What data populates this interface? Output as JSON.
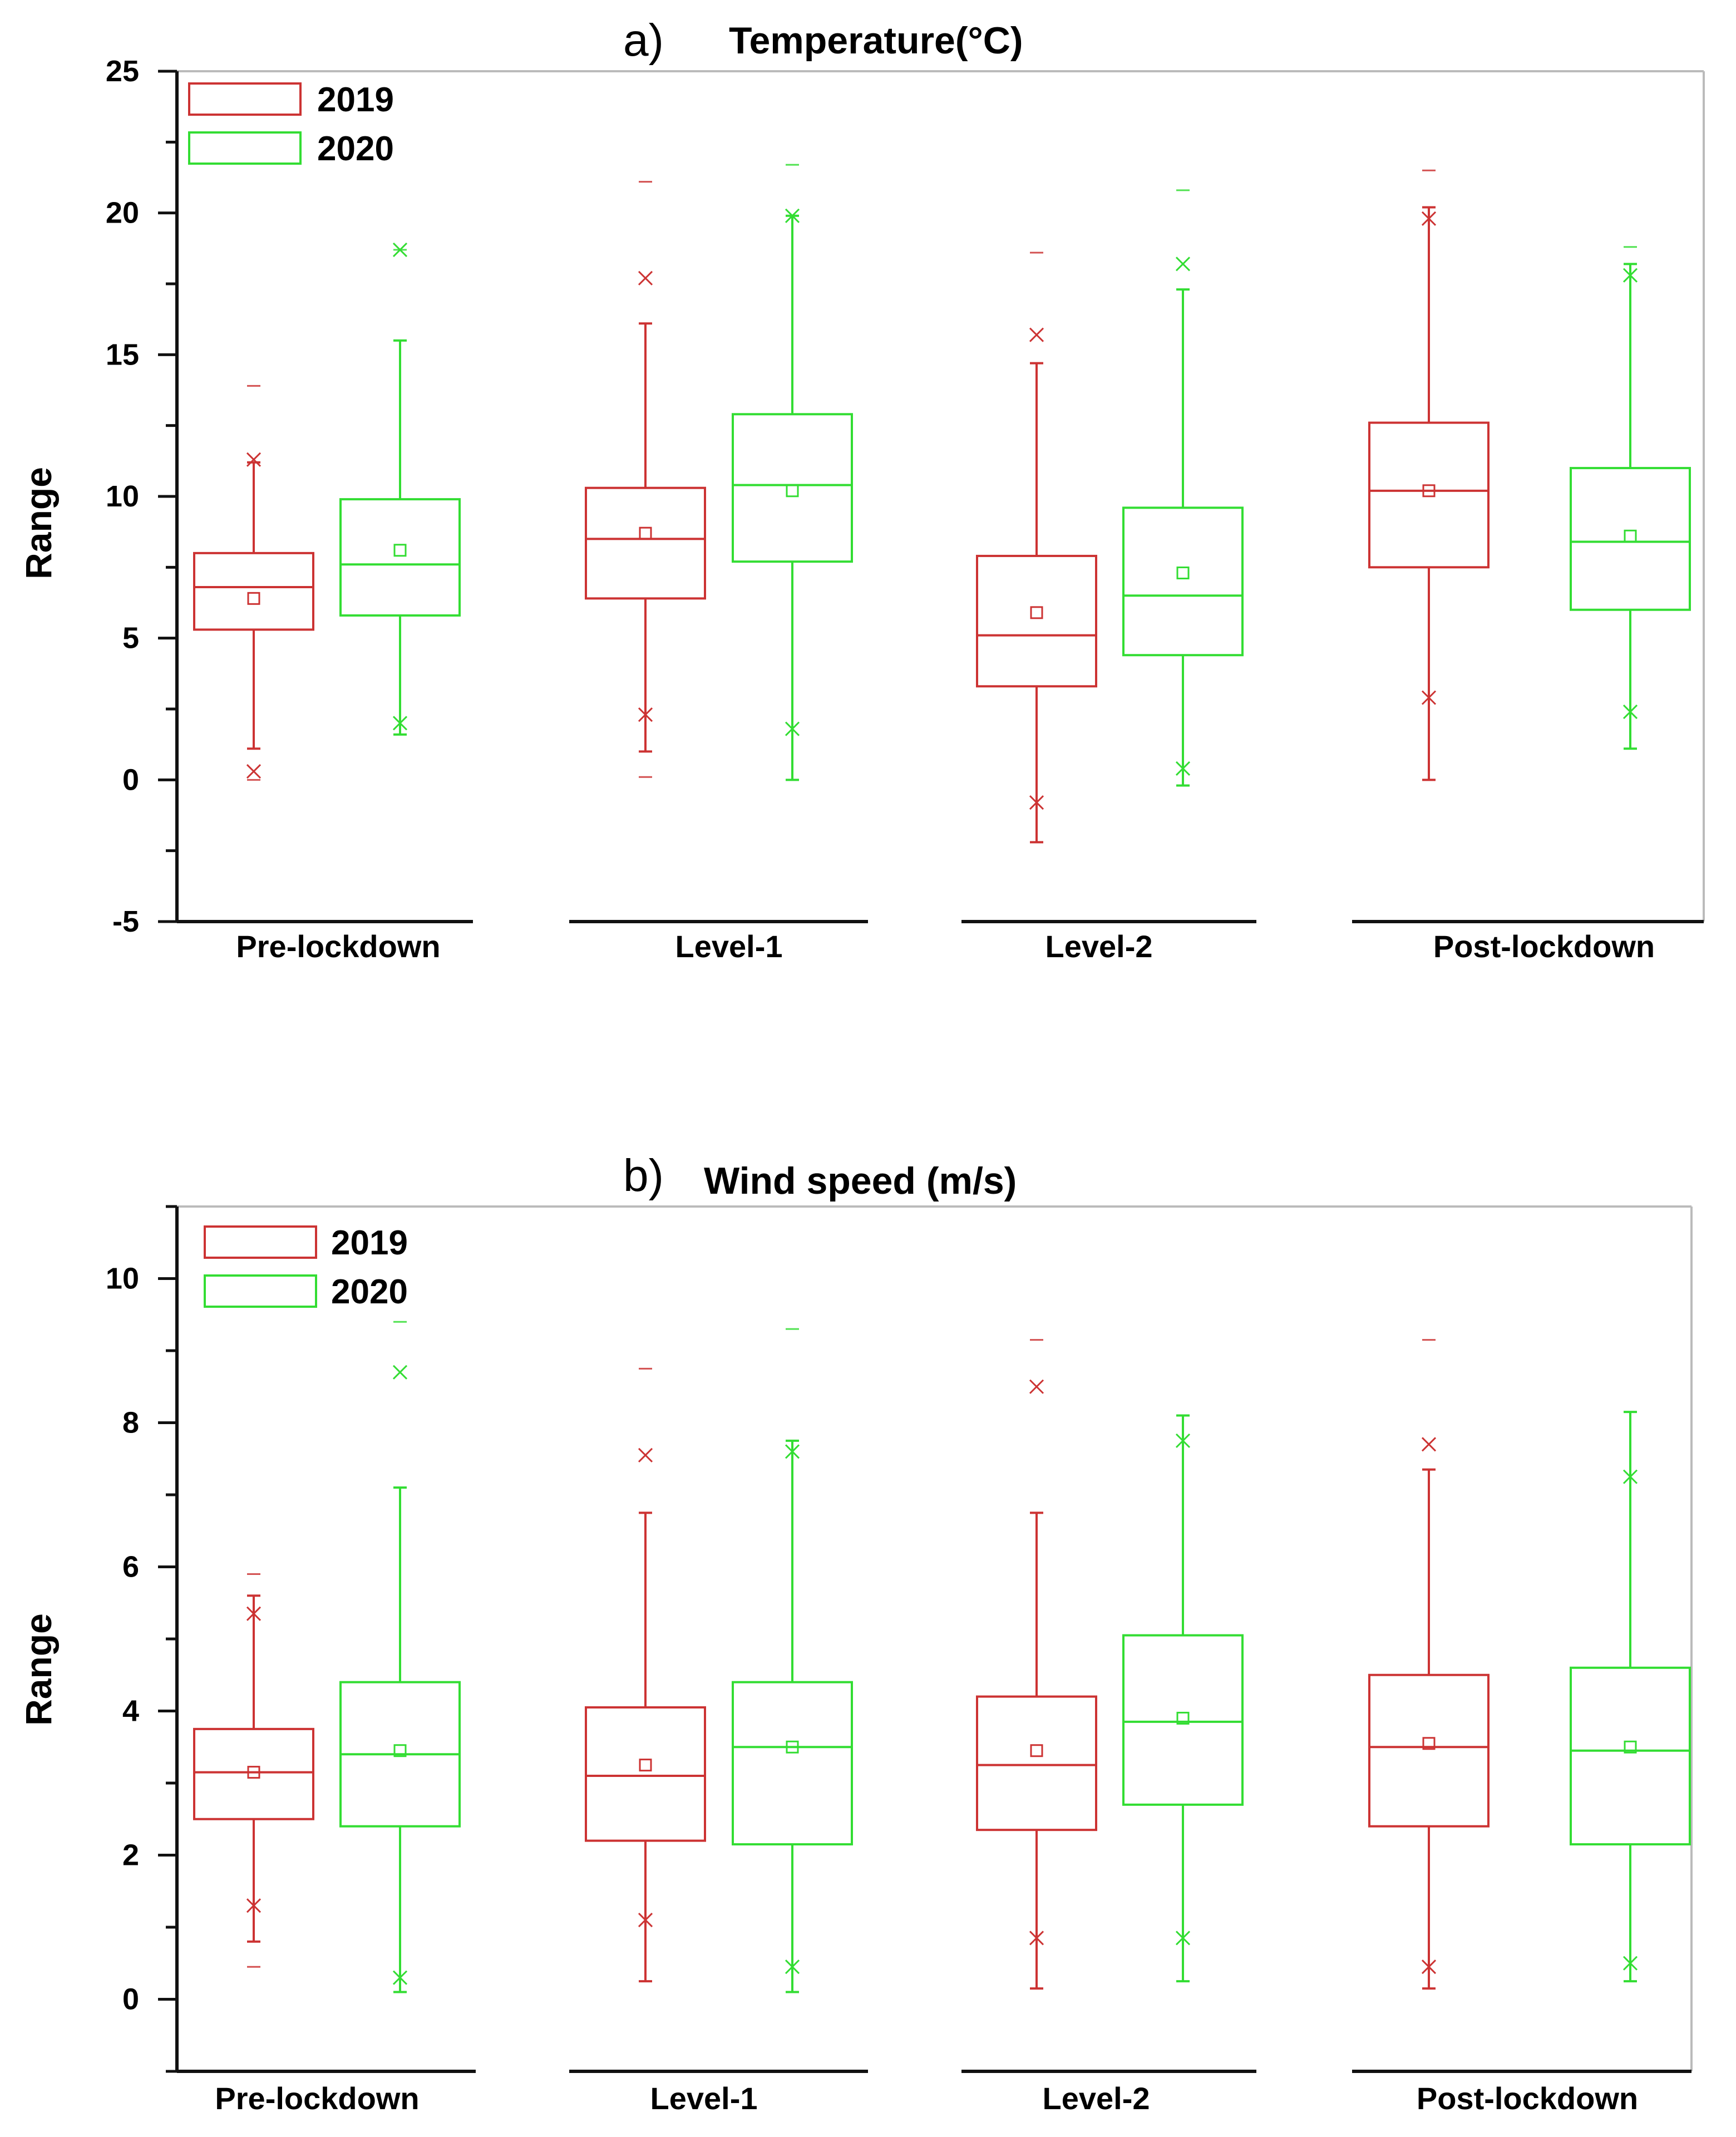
{
  "chart_data": [
    {
      "type": "box",
      "panel_letter": "a)",
      "title": "Temperature(°C)",
      "ylabel": "Range",
      "ylim": [
        -5,
        25
      ],
      "yticks": [
        "25",
        "20",
        "15",
        "10",
        "5",
        "0",
        "-5"
      ],
      "categories": [
        "Pre-lockdown",
        "Level-1",
        "Level-2",
        "Post-lockdown"
      ],
      "legend": {
        "position": "top-left",
        "entries": [
          "2019",
          "2020"
        ]
      },
      "colors": {
        "2019": "#cc3333",
        "2020": "#33dd33"
      },
      "series": [
        {
          "name": "2019",
          "boxes": [
            {
              "min": 0.0,
              "p1": 0.3,
              "whisker_low": 1.1,
              "q1": 5.3,
              "median": 6.8,
              "mean": 6.4,
              "q3": 8.0,
              "whisker_high": 11.2,
              "p99": 11.3,
              "max": 13.9
            },
            {
              "min": 0.1,
              "p1": 2.3,
              "whisker_low": 1.0,
              "q1": 6.4,
              "median": 8.5,
              "mean": 8.7,
              "q3": 10.3,
              "whisker_high": 16.1,
              "p99": 17.7,
              "max": 21.1
            },
            {
              "min": -2.2,
              "p1": -0.8,
              "whisker_low": -2.2,
              "q1": 3.3,
              "median": 5.1,
              "mean": 5.9,
              "q3": 7.9,
              "whisker_high": 14.7,
              "p99": 15.7,
              "max": 18.6
            },
            {
              "min": 0.0,
              "p1": 2.9,
              "whisker_low": 0.0,
              "q1": 7.5,
              "median": 10.2,
              "mean": 10.2,
              "q3": 12.6,
              "whisker_high": 20.2,
              "p99": 19.8,
              "max": 21.5
            }
          ]
        },
        {
          "name": "2020",
          "boxes": [
            {
              "min": 1.6,
              "p1": 2.0,
              "whisker_low": 1.6,
              "q1": 5.8,
              "median": 7.6,
              "mean": 8.1,
              "q3": 9.9,
              "whisker_high": 15.5,
              "p99": 18.7,
              "max": 18.7
            },
            {
              "min": 0.0,
              "p1": 1.8,
              "whisker_low": 0.0,
              "q1": 7.7,
              "median": 10.4,
              "mean": 10.2,
              "q3": 12.9,
              "whisker_high": 19.9,
              "p99": 19.9,
              "max": 21.7
            },
            {
              "min": -0.2,
              "p1": 0.4,
              "whisker_low": -0.2,
              "q1": 4.4,
              "median": 6.5,
              "mean": 7.3,
              "q3": 9.6,
              "whisker_high": 17.3,
              "p99": 18.2,
              "max": 20.8
            },
            {
              "min": 1.1,
              "p1": 2.4,
              "whisker_low": 1.1,
              "q1": 6.0,
              "median": 8.4,
              "mean": 8.6,
              "q3": 11.0,
              "whisker_high": 18.2,
              "p99": 17.8,
              "max": 18.8
            }
          ]
        }
      ]
    },
    {
      "type": "box",
      "panel_letter": "b)",
      "title": "Wind speed (m/s)",
      "ylabel": "Range",
      "ylim": [
        -1,
        11
      ],
      "yticks": [
        "10",
        "8",
        "6",
        "4",
        "2",
        "0"
      ],
      "categories": [
        "Pre-lockdown",
        "Level-1",
        "Level-2",
        "Post-lockdown"
      ],
      "legend": {
        "position": "top-left",
        "entries": [
          "2019",
          "2020"
        ]
      },
      "colors": {
        "2019": "#cc3333",
        "2020": "#33dd33"
      },
      "series": [
        {
          "name": "2019",
          "boxes": [
            {
              "min": 0.45,
              "p1": 1.3,
              "whisker_low": 0.8,
              "q1": 2.5,
              "median": 3.15,
              "mean": 3.15,
              "q3": 3.75,
              "whisker_high": 5.6,
              "p99": 5.35,
              "max": 5.9
            },
            {
              "min": 0.25,
              "p1": 1.1,
              "whisker_low": 0.25,
              "q1": 2.2,
              "median": 3.1,
              "mean": 3.25,
              "q3": 4.05,
              "whisker_high": 6.75,
              "p99": 7.55,
              "max": 8.75
            },
            {
              "min": 0.15,
              "p1": 0.85,
              "whisker_low": 0.15,
              "q1": 2.35,
              "median": 3.25,
              "mean": 3.45,
              "q3": 4.2,
              "whisker_high": 6.75,
              "p99": 8.5,
              "max": 9.15
            },
            {
              "min": 0.15,
              "p1": 0.45,
              "whisker_low": 0.15,
              "q1": 2.4,
              "median": 3.5,
              "mean": 3.55,
              "q3": 4.5,
              "whisker_high": 7.35,
              "p99": 7.7,
              "max": 9.15
            }
          ]
        },
        {
          "name": "2020",
          "boxes": [
            {
              "min": 0.1,
              "p1": 0.3,
              "whisker_low": 0.1,
              "q1": 2.4,
              "median": 3.4,
              "mean": 3.45,
              "q3": 4.4,
              "whisker_high": 7.1,
              "p99": 8.7,
              "max": 9.4
            },
            {
              "min": 0.1,
              "p1": 0.45,
              "whisker_low": 0.1,
              "q1": 2.15,
              "median": 3.5,
              "mean": 3.5,
              "q3": 4.4,
              "whisker_high": 7.75,
              "p99": 7.6,
              "max": 9.3
            },
            {
              "min": 0.25,
              "p1": 0.85,
              "whisker_low": 0.25,
              "q1": 2.7,
              "median": 3.85,
              "mean": 3.9,
              "q3": 5.05,
              "whisker_high": 8.1,
              "p99": 7.75,
              "max": 8.1
            },
            {
              "min": 0.25,
              "p1": 0.5,
              "whisker_low": 0.25,
              "q1": 2.15,
              "median": 3.45,
              "mean": 3.5,
              "q3": 4.6,
              "whisker_high": 8.15,
              "p99": 7.25,
              "max": 8.15
            }
          ]
        }
      ]
    }
  ]
}
